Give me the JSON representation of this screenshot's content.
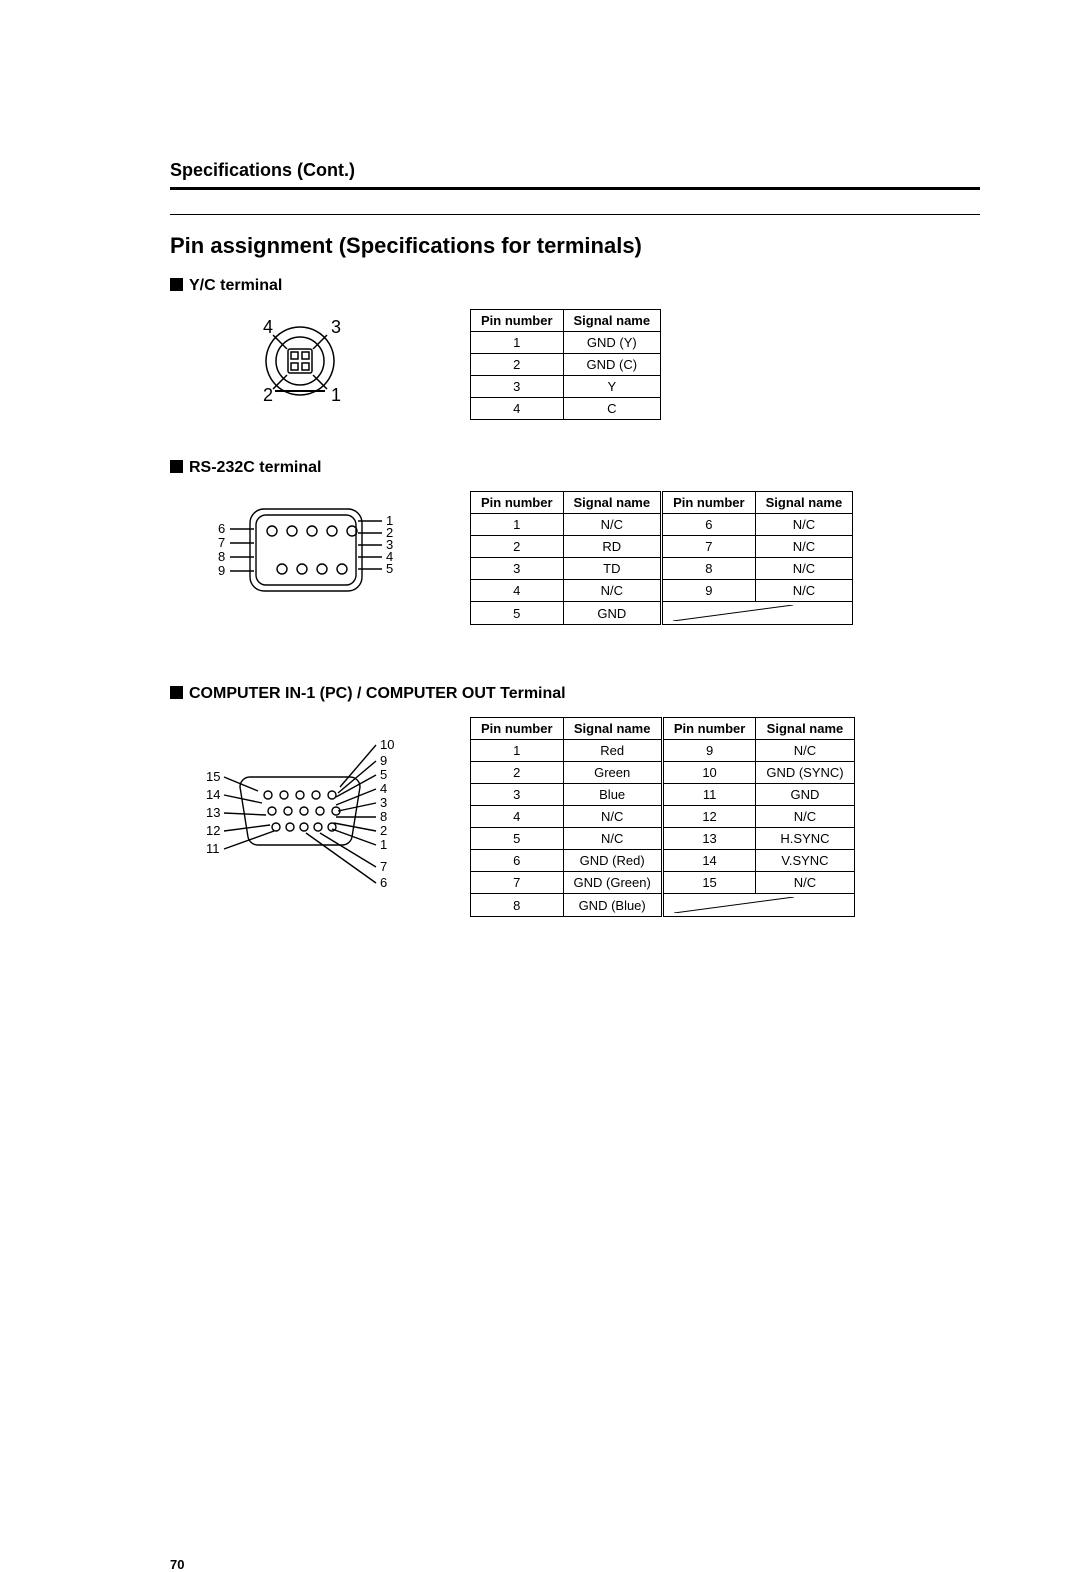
{
  "page": {
    "header": "Specifications (Cont.)",
    "title": "Pin assignment (Specifications for terminals)",
    "page_number": "70"
  },
  "yc": {
    "heading": "Y/C terminal",
    "columns": [
      "Pin number",
      "Signal name"
    ],
    "rows": [
      [
        "1",
        "GND (Y)"
      ],
      [
        "2",
        "GND (C)"
      ],
      [
        "3",
        "Y"
      ],
      [
        "4",
        "C"
      ]
    ],
    "diagram": {
      "pin_labels": [
        "1",
        "2",
        "3",
        "4"
      ],
      "label_fontsize": 18,
      "outline_stroke": "#000000",
      "fill": "#ffffff"
    }
  },
  "rs232c": {
    "heading": "RS-232C terminal",
    "columns": [
      "Pin number",
      "Signal name",
      "Pin number",
      "Signal name"
    ],
    "rows": [
      [
        "1",
        "N/C",
        "6",
        "N/C"
      ],
      [
        "2",
        "RD",
        "7",
        "N/C"
      ],
      [
        "3",
        "TD",
        "8",
        "N/C"
      ],
      [
        "4",
        "N/C",
        "9",
        "N/C"
      ],
      [
        "5",
        "GND",
        "",
        ""
      ]
    ],
    "diagram": {
      "left_labels": [
        "6",
        "7",
        "8",
        "9"
      ],
      "right_labels": [
        "1",
        "2",
        "3",
        "4",
        "5"
      ],
      "label_fontsize": 13,
      "outline_stroke": "#000000",
      "pin_fill": "#ffffff"
    }
  },
  "vga": {
    "heading": "COMPUTER IN-1 (PC) / COMPUTER OUT Terminal",
    "columns": [
      "Pin number",
      "Signal name",
      "Pin number",
      "Signal name"
    ],
    "rows": [
      [
        "1",
        "Red",
        "9",
        "N/C"
      ],
      [
        "2",
        "Green",
        "10",
        "GND (SYNC)"
      ],
      [
        "3",
        "Blue",
        "11",
        "GND"
      ],
      [
        "4",
        "N/C",
        "12",
        "N/C"
      ],
      [
        "5",
        "N/C",
        "13",
        "H.SYNC"
      ],
      [
        "6",
        "GND (Red)",
        "14",
        "V.SYNC"
      ],
      [
        "7",
        "GND (Green)",
        "15",
        "N/C"
      ],
      [
        "8",
        "GND (Blue)",
        "",
        ""
      ]
    ],
    "diagram": {
      "left_labels": [
        "15",
        "14",
        "13",
        "12",
        "11"
      ],
      "right_labels": [
        "10",
        "9",
        "5",
        "4",
        "3",
        "8",
        "2",
        "1",
        "7",
        "6"
      ],
      "label_fontsize": 13,
      "outline_stroke": "#000000",
      "pin_fill": "#ffffff"
    }
  },
  "style": {
    "background_color": "#ffffff",
    "text_color": "#000000",
    "table_border_color": "#000000",
    "table_fontsize": 13,
    "header_fontsize": 18,
    "title_fontsize": 22,
    "subhead_fontsize": 16
  }
}
